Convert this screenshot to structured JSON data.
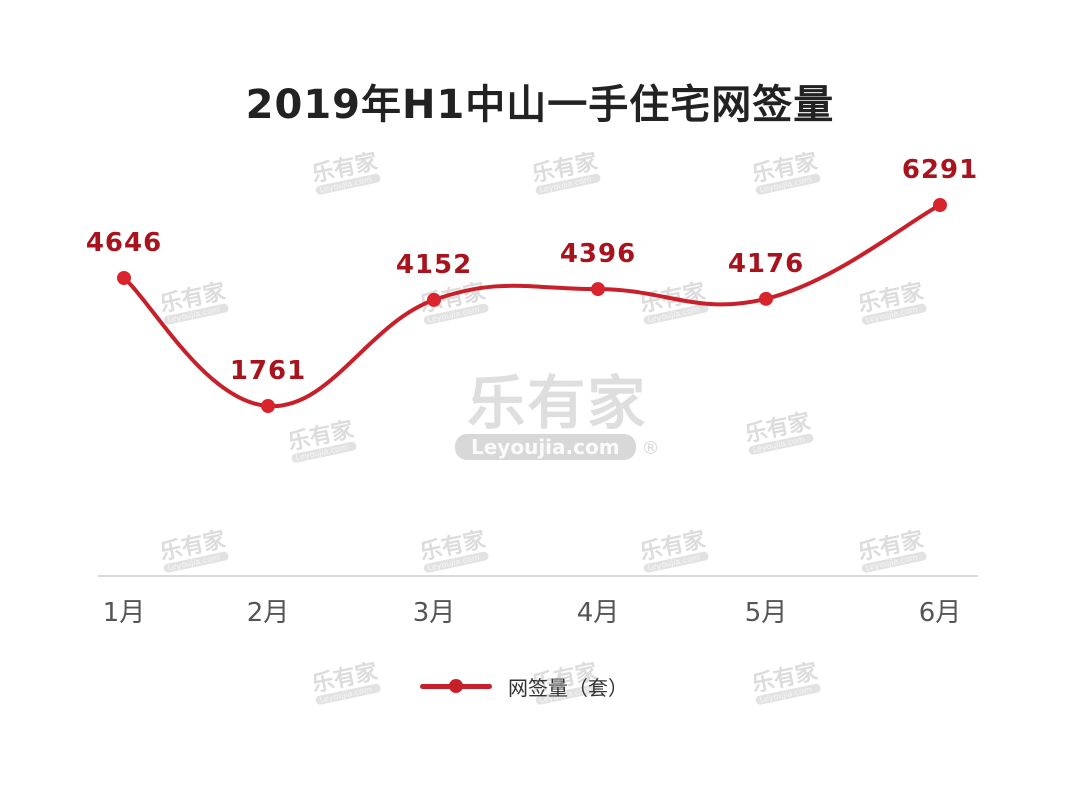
{
  "title": "2019年H1中山一手住宅网签量",
  "watermark": {
    "cn": "乐有家",
    "en": "Leyoujia.com",
    "reg": "®"
  },
  "legend": {
    "label": "网签量（套）",
    "color": "#c8202a"
  },
  "chart_data": {
    "type": "line",
    "title": "2019年H1中山一手住宅网签量",
    "categories": [
      "1月",
      "2月",
      "3月",
      "4月",
      "5月",
      "6月"
    ],
    "series": [
      {
        "name": "网签量（套）",
        "values": [
          4646,
          1761,
          4152,
          4396,
          4176,
          6291
        ],
        "color": "#c8202a"
      }
    ],
    "xlabel": "",
    "ylabel": "",
    "grid": false,
    "smooth": true,
    "data_labels": true,
    "legend_position": "bottom"
  }
}
